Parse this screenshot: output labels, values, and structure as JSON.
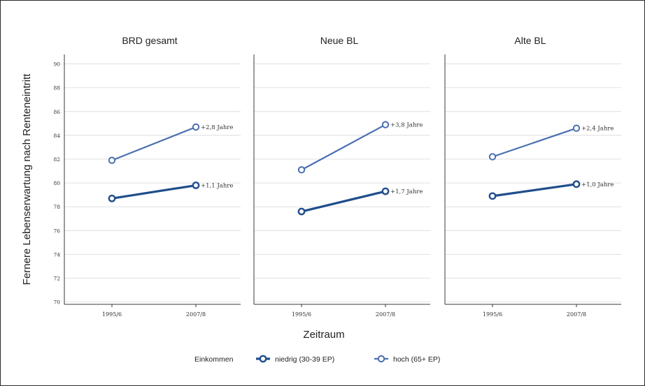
{
  "chart_data": {
    "type": "line",
    "ylabel": "Fernere Lebenserwartung nach Renteneintritt",
    "xlabel": "Zeitraum",
    "ylim": [
      70,
      90
    ],
    "yticks": [
      70,
      72,
      74,
      76,
      78,
      80,
      82,
      84,
      86,
      88,
      90
    ],
    "categories": [
      "1995/6",
      "2007/8"
    ],
    "grid": "horizontal",
    "legend": {
      "position": "bottom",
      "title": "Einkommen"
    },
    "colors": {
      "niedrig": "#1f4e8c",
      "hoch": "#4a6fb0"
    },
    "panels": [
      {
        "title": "BRD gesamt",
        "series": [
          {
            "name": "niedrig (30-39 EP)",
            "values": [
              78.7,
              79.8
            ],
            "label": "+1,1 Jahre"
          },
          {
            "name": "hoch (65+ EP)",
            "values": [
              81.9,
              84.7
            ],
            "label": "+2,8 Jahre"
          }
        ]
      },
      {
        "title": "Neue BL",
        "series": [
          {
            "name": "niedrig (30-39 EP)",
            "values": [
              77.6,
              79.3
            ],
            "label": "+1,7 Jahre"
          },
          {
            "name": "hoch (65+ EP)",
            "values": [
              81.1,
              84.9
            ],
            "label": "+3,8 Jahre"
          }
        ]
      },
      {
        "title": "Alte BL",
        "series": [
          {
            "name": "niedrig (30-39 EP)",
            "values": [
              78.9,
              79.9
            ],
            "label": "+1,0 Jahre"
          },
          {
            "name": "hoch (65+ EP)",
            "values": [
              82.2,
              84.6
            ],
            "label": "+2,4 Jahre"
          }
        ]
      }
    ]
  }
}
